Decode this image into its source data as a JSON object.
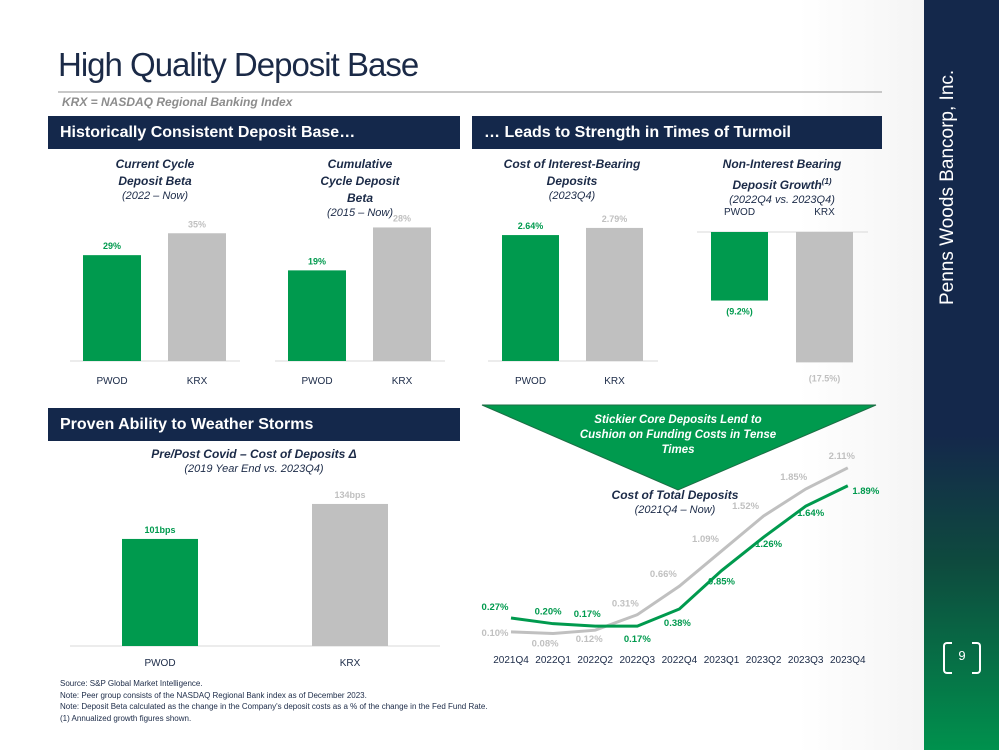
{
  "slide": {
    "title": "High Quality Deposit Base",
    "subtitle": "KRX = NASDAQ Regional Banking Index",
    "company": "Penns Woods Bancorp, Inc.",
    "page": "9"
  },
  "headers": {
    "left_top": "Historically Consistent Deposit Base…",
    "right_top": "… Leads to Strength in Times of Turmoil",
    "left_bottom": "Proven Ability to Weather Storms"
  },
  "callout": "Stickier Core Deposits Lend to Cushion on Funding Costs in Tense Times",
  "colors": {
    "pwod": "#009a4e",
    "krx": "#c0c0c0",
    "navy": "#14284b"
  },
  "notes": [
    "Source: S&P Global Market Intelligence.",
    "Note: Peer group consists of the NASDAQ Regional Bank index as of December 2023.",
    "Note: Deposit Beta calculated as the change in the Company's deposit costs as a % of the change in the Fed Fund Rate.",
    "(1) Annualized growth figures shown."
  ],
  "chart_data": [
    {
      "type": "bar",
      "title": "Current Cycle Deposit Beta",
      "subtitle": "(2022 – Now)",
      "categories": [
        "PWOD",
        "KRX"
      ],
      "values": [
        29,
        35
      ],
      "labels": [
        "29%",
        "35%"
      ]
    },
    {
      "type": "bar",
      "title": "Cumulative Cycle Deposit Beta",
      "subtitle": "(2015 – Now)",
      "categories": [
        "PWOD",
        "KRX"
      ],
      "values": [
        19,
        28
      ],
      "labels": [
        "19%",
        "28%"
      ]
    },
    {
      "type": "bar",
      "title": "Cost of Interest-Bearing Deposits",
      "subtitle": "(2023Q4)",
      "categories": [
        "PWOD",
        "KRX"
      ],
      "values": [
        2.64,
        2.79
      ],
      "labels": [
        "2.64%",
        "2.79%"
      ]
    },
    {
      "type": "bar",
      "title": "Non-Interest Bearing Deposit Growth",
      "title_sup": "(1)",
      "subtitle": "(2022Q4 vs. 2023Q4)",
      "categories": [
        "PWOD",
        "KRX"
      ],
      "values": [
        -9.2,
        -17.5
      ],
      "labels": [
        "(9.2%)",
        "(17.5%)"
      ]
    },
    {
      "type": "bar",
      "title": "Pre/Post Covid – Cost of Deposits Δ",
      "subtitle": "(2019 Year End vs. 2023Q4)",
      "categories": [
        "PWOD",
        "KRX"
      ],
      "values": [
        101,
        134
      ],
      "labels": [
        "101bps",
        "134bps"
      ]
    },
    {
      "type": "line",
      "title": "Cost of Total Deposits",
      "subtitle": "(2021Q4 – Now)",
      "categories": [
        "2021Q4",
        "2022Q1",
        "2022Q2",
        "2022Q3",
        "2022Q4",
        "2023Q1",
        "2023Q2",
        "2023Q3",
        "2023Q4"
      ],
      "series": [
        {
          "name": "PWOD",
          "values": [
            0.27,
            0.2,
            0.17,
            0.17,
            0.38,
            0.85,
            1.26,
            1.64,
            1.89
          ],
          "labels": [
            "0.27%",
            "0.20%",
            "0.17%",
            "0.17%",
            "0.38%",
            "0.85%",
            "1.26%",
            "1.64%",
            "1.89%"
          ]
        },
        {
          "name": "KRX",
          "values": [
            0.1,
            0.08,
            0.12,
            0.31,
            0.66,
            1.09,
            1.52,
            1.85,
            2.11
          ],
          "labels": [
            "0.10%",
            "0.08%",
            "0.12%",
            "0.31%",
            "0.66%",
            "1.09%",
            "1.52%",
            "1.85%",
            "2.11%"
          ]
        }
      ]
    }
  ]
}
